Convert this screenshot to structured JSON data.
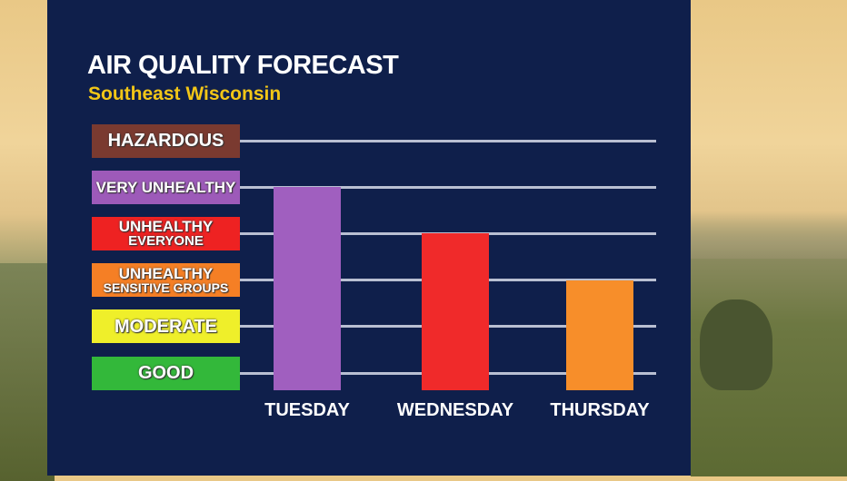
{
  "chart_data": {
    "type": "bar",
    "title": "AIR QUALITY FORECAST",
    "subtitle": "Southeast Wisconsin",
    "categories": [
      "TUESDAY",
      "WEDNESDAY",
      "THURSDAY"
    ],
    "values": [
      5,
      4,
      3
    ],
    "bar_colors": [
      "#a05fbf",
      "#f02a2a",
      "#f78e2a"
    ],
    "levels": [
      {
        "value": 6,
        "line1": "HAZARDOUS",
        "line2": "",
        "color": "#7a3a30"
      },
      {
        "value": 5,
        "line1": "VERY UNHEALTHY",
        "line2": "",
        "color": "#9d5ab9"
      },
      {
        "value": 4,
        "line1": "UNHEALTHY",
        "line2": "EVERYONE",
        "color": "#ee2222"
      },
      {
        "value": 3,
        "line1": "UNHEALTHY",
        "line2": "SENSITIVE GROUPS",
        "color": "#f57f25"
      },
      {
        "value": 2,
        "line1": "MODERATE",
        "line2": "",
        "color": "#efef2a"
      },
      {
        "value": 1,
        "line1": "GOOD",
        "line2": "",
        "color": "#33b83a"
      }
    ],
    "ylim": [
      0.63,
      6
    ],
    "grid": true
  }
}
